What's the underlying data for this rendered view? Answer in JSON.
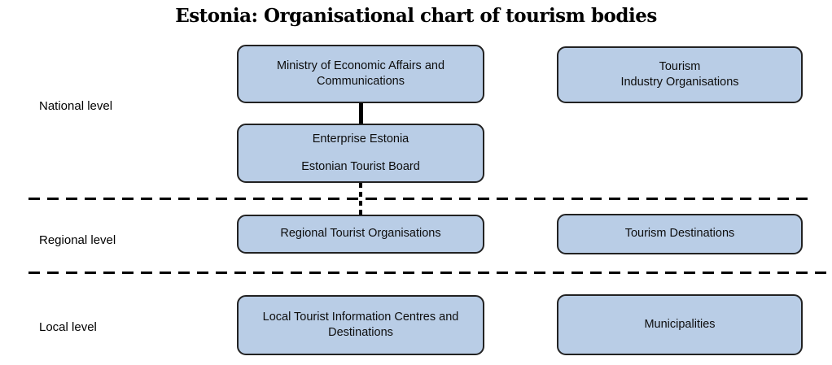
{
  "title": "Estonia: Organisational chart of tourism bodies",
  "colors": {
    "box_fill": "#b9cde6",
    "box_border": "#222222",
    "line": "#000000",
    "background": "#ffffff"
  },
  "levels": {
    "national": "National level",
    "regional": "Regional level",
    "local": "Local level"
  },
  "nodes": {
    "ministry": {
      "line1": "Ministry of Economic Affairs and",
      "line2": "Communications"
    },
    "tourism_industry": {
      "line1": "Tourism",
      "line2": "Industry Organisations"
    },
    "enterprise": {
      "line1": "Enterprise Estonia",
      "line2": "Estonian Tourist Board"
    },
    "regional_orgs": {
      "line1": "Regional Tourist Organisations"
    },
    "tourism_destinations": {
      "line1": "Tourism Destinations"
    },
    "local_centres": {
      "line1": "Local Tourist Information Centres and",
      "line2": "Destinations"
    },
    "municipalities": {
      "line1": "Municipalities"
    }
  },
  "connectors": {
    "ministry_to_enterprise": "solid",
    "enterprise_to_regional": "dashed"
  }
}
